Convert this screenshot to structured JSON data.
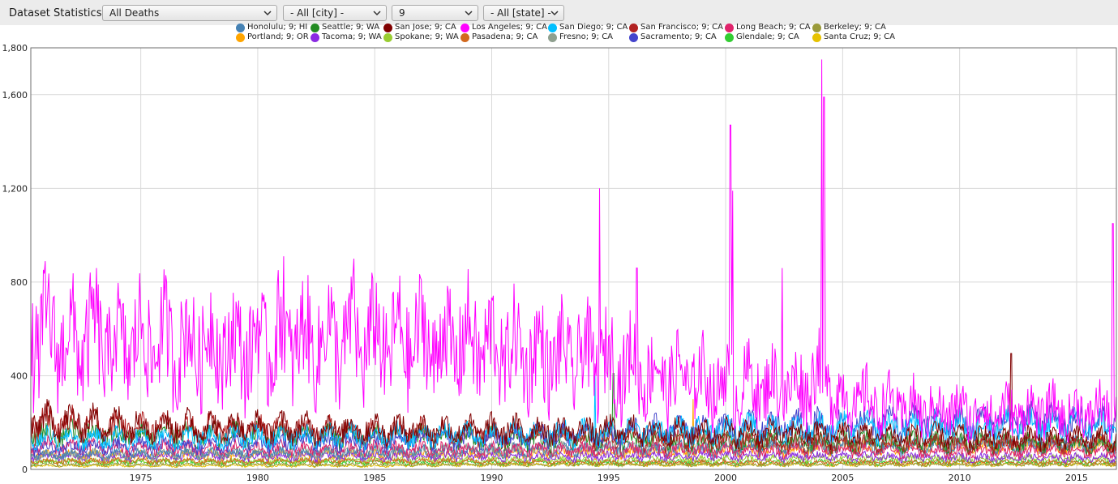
{
  "toolbar": {
    "title": "Dataset Statistics",
    "dataset_select": "All Deaths",
    "city_select": "- All [city] -",
    "week_select": "9",
    "state_select": "- All [state] -"
  },
  "legend": [
    {
      "label": "Honolulu; 9; HI",
      "color": "#4682b4"
    },
    {
      "label": "Seattle; 9; WA",
      "color": "#228b22"
    },
    {
      "label": "San Jose; 9; CA",
      "color": "#800000"
    },
    {
      "label": "Los Angeles; 9; CA",
      "color": "#ff00ff"
    },
    {
      "label": "San Diego; 9; CA",
      "color": "#00bfff"
    },
    {
      "label": "San Francisco; 9; CA",
      "color": "#b22222"
    },
    {
      "label": "Long Beach; 9; CA",
      "color": "#e0246c"
    },
    {
      "label": "Berkeley; 9; CA",
      "color": "#9a9a3a"
    },
    {
      "label": "Portland; 9; OR",
      "color": "#ffa500"
    },
    {
      "label": "Tacoma; 9; WA",
      "color": "#8a2be2"
    },
    {
      "label": "Spokane; 9; WA",
      "color": "#9acd32"
    },
    {
      "label": "Pasadena; 9; CA",
      "color": "#d2691e"
    },
    {
      "label": "Fresno; 9; CA",
      "color": "#8fa08f"
    },
    {
      "label": "Sacramento; 9; CA",
      "color": "#4444cc"
    },
    {
      "label": "Glendale; 9; CA",
      "color": "#32cd32"
    },
    {
      "label": "Santa Cruz; 9; CA",
      "color": "#e6c200"
    }
  ],
  "chart_data": {
    "type": "line",
    "title": "",
    "xlabel": "",
    "ylabel": "",
    "xlim": [
      1970.3,
      2016.7
    ],
    "ylim": [
      0,
      1800
    ],
    "yticks": [
      0,
      400,
      800,
      1200,
      1600,
      1800
    ],
    "ytick_labels": [
      "0",
      "400",
      "800",
      "1,200",
      "1,600",
      "1,800"
    ],
    "xticks": [
      1975,
      1980,
      1985,
      1990,
      1995,
      2000,
      2005,
      2010,
      2015
    ],
    "xtick_labels": [
      "1975",
      "1980",
      "1985",
      "1990",
      "1995",
      "2000",
      "2005",
      "2010",
      "2015"
    ],
    "grid": true,
    "legend_position": "top",
    "series": [
      {
        "name": "Los Angeles; 9; CA",
        "color": "#ff00ff",
        "points": [
          [
            1970.3,
            560
          ],
          [
            1971,
            580
          ],
          [
            1972,
            540
          ],
          [
            1973,
            560
          ],
          [
            1974,
            520
          ],
          [
            1975,
            550
          ],
          [
            1976,
            540
          ],
          [
            1977,
            530
          ],
          [
            1978,
            540
          ],
          [
            1979,
            520
          ],
          [
            1980,
            530
          ],
          [
            1981,
            560
          ],
          [
            1982,
            540
          ],
          [
            1983,
            560
          ],
          [
            1984,
            530
          ],
          [
            1985,
            550
          ],
          [
            1986,
            540
          ],
          [
            1987,
            550
          ],
          [
            1988,
            530
          ],
          [
            1989,
            540
          ],
          [
            1990,
            520
          ],
          [
            1991,
            500
          ],
          [
            1992,
            490
          ],
          [
            1993,
            470
          ],
          [
            1994,
            480
          ],
          [
            1995,
            450
          ],
          [
            1996,
            440
          ],
          [
            1997,
            400
          ],
          [
            1998,
            390
          ],
          [
            1999,
            380
          ],
          [
            2000,
            360
          ],
          [
            2001,
            360
          ],
          [
            2002,
            350
          ],
          [
            2003,
            340
          ],
          [
            2004,
            420
          ],
          [
            2005,
            300
          ],
          [
            2006,
            290
          ],
          [
            2007,
            270
          ],
          [
            2008,
            260
          ],
          [
            2009,
            250
          ],
          [
            2010,
            250
          ],
          [
            2011,
            245
          ],
          [
            2012,
            245
          ],
          [
            2013,
            245
          ],
          [
            2014,
            245
          ],
          [
            2015,
            240
          ],
          [
            2016,
            250
          ],
          [
            2016.7,
            245
          ]
        ],
        "spikes": [
          [
            1973.1,
            860
          ],
          [
            1981.1,
            910
          ],
          [
            1984.1,
            900
          ],
          [
            1994.6,
            1200
          ],
          [
            1996.2,
            860
          ],
          [
            2000.2,
            1470
          ],
          [
            2000.3,
            1190
          ],
          [
            2002.4,
            860
          ],
          [
            2004.1,
            1750
          ],
          [
            2004.2,
            1590
          ],
          [
            2016.55,
            1050
          ]
        ]
      },
      {
        "name": "San Jose; 9; CA",
        "color": "#800000",
        "points": [
          [
            1970.3,
            210
          ],
          [
            1975,
            190
          ],
          [
            1980,
            180
          ],
          [
            1985,
            175
          ],
          [
            1990,
            170
          ],
          [
            1995,
            165
          ],
          [
            2000,
            160
          ],
          [
            2005,
            150
          ],
          [
            2010,
            140
          ],
          [
            2016.7,
            130
          ]
        ],
        "spikes": [
          [
            2012.2,
            495
          ]
        ]
      },
      {
        "name": "San Diego; 9; CA",
        "color": "#00bfff",
        "points": [
          [
            1970.3,
            130
          ],
          [
            1975,
            135
          ],
          [
            1980,
            140
          ],
          [
            1985,
            145
          ],
          [
            1990,
            150
          ],
          [
            1995,
            160
          ],
          [
            2000,
            170
          ],
          [
            2005,
            175
          ],
          [
            2010,
            180
          ],
          [
            2016.7,
            190
          ]
        ],
        "spikes": [
          [
            1994.4,
            400
          ]
        ]
      },
      {
        "name": "Sacramento; 9; CA",
        "color": "#4444cc",
        "points": [
          [
            1970.3,
            90
          ],
          [
            1975,
            100
          ],
          [
            1980,
            110
          ],
          [
            1985,
            120
          ],
          [
            1990,
            135
          ],
          [
            1995,
            155
          ],
          [
            2000,
            180
          ],
          [
            2005,
            195
          ],
          [
            2010,
            200
          ],
          [
            2016.7,
            210
          ]
        ],
        "spikes": []
      },
      {
        "name": "San Francisco; 9; CA",
        "color": "#b22222",
        "points": [
          [
            1970.3,
            200
          ],
          [
            1975,
            180
          ],
          [
            1980,
            170
          ],
          [
            1985,
            160
          ],
          [
            1990,
            150
          ],
          [
            1995,
            130
          ],
          [
            2000,
            120
          ],
          [
            2005,
            110
          ],
          [
            2010,
            110
          ],
          [
            2016.7,
            110
          ]
        ],
        "spikes": []
      },
      {
        "name": "Seattle; 9; WA",
        "color": "#228b22",
        "points": [
          [
            1970.3,
            160
          ],
          [
            1975,
            150
          ],
          [
            1980,
            145
          ],
          [
            1985,
            140
          ],
          [
            1990,
            135
          ],
          [
            1995,
            125
          ],
          [
            2000,
            120
          ],
          [
            2005,
            120
          ],
          [
            2010,
            115
          ],
          [
            2016.7,
            110
          ]
        ],
        "spikes": [
          [
            1995.2,
            410
          ]
        ]
      },
      {
        "name": "Long Beach; 9; CA",
        "color": "#e0246c",
        "points": [
          [
            1970.3,
            100
          ],
          [
            1975,
            95
          ],
          [
            1980,
            90
          ],
          [
            1985,
            90
          ],
          [
            1990,
            85
          ],
          [
            1995,
            85
          ],
          [
            2000,
            80
          ],
          [
            2005,
            80
          ],
          [
            2010,
            75
          ],
          [
            2016.7,
            75
          ]
        ],
        "spikes": []
      },
      {
        "name": "Honolulu; 9; HI",
        "color": "#4682b4",
        "points": [
          [
            1970.3,
            60
          ],
          [
            1975,
            65
          ],
          [
            1980,
            70
          ],
          [
            1985,
            75
          ],
          [
            1990,
            80
          ],
          [
            1995,
            85
          ],
          [
            2000,
            90
          ],
          [
            2005,
            95
          ],
          [
            2010,
            100
          ],
          [
            2016.7,
            105
          ]
        ],
        "spikes": []
      },
      {
        "name": "Fresno; 9; CA",
        "color": "#8fa08f",
        "points": [
          [
            1970.3,
            60
          ],
          [
            1975,
            65
          ],
          [
            1980,
            70
          ],
          [
            1985,
            75
          ],
          [
            1990,
            80
          ],
          [
            1995,
            90
          ],
          [
            2000,
            100
          ],
          [
            2005,
            105
          ],
          [
            2010,
            110
          ],
          [
            2016.7,
            115
          ]
        ],
        "spikes": []
      },
      {
        "name": "Tacoma; 9; WA",
        "color": "#8a2be2",
        "points": [
          [
            1970.3,
            55
          ],
          [
            1975,
            55
          ],
          [
            1980,
            55
          ],
          [
            1985,
            55
          ],
          [
            1990,
            55
          ],
          [
            1995,
            55
          ],
          [
            2000,
            55
          ],
          [
            2005,
            55
          ],
          [
            2010,
            50
          ],
          [
            2016.7,
            50
          ]
        ],
        "spikes": []
      },
      {
        "name": "Pasadena; 9; CA",
        "color": "#d2691e",
        "points": [
          [
            1970.3,
            35
          ],
          [
            1975,
            35
          ],
          [
            1980,
            35
          ],
          [
            1985,
            35
          ],
          [
            1990,
            35
          ],
          [
            1995,
            30
          ],
          [
            2000,
            30
          ],
          [
            2005,
            30
          ],
          [
            2010,
            30
          ],
          [
            2016.7,
            30
          ]
        ],
        "spikes": []
      },
      {
        "name": "Portland; 9; OR",
        "color": "#ffa500",
        "points": [
          [
            1970.3,
            60
          ],
          [
            1975,
            60
          ],
          [
            1980,
            60
          ],
          [
            1985,
            60
          ],
          [
            1990,
            65
          ],
          [
            1995,
            70
          ],
          [
            2000,
            80
          ],
          [
            2005,
            90
          ],
          [
            2010,
            95
          ],
          [
            2016.7,
            100
          ]
        ],
        "spikes": [
          [
            1998.6,
            300
          ]
        ]
      },
      {
        "name": "Spokane; 9; WA",
        "color": "#9acd32",
        "points": [
          [
            1970.3,
            35
          ],
          [
            1975,
            35
          ],
          [
            1980,
            35
          ],
          [
            1985,
            40
          ],
          [
            1990,
            40
          ],
          [
            1995,
            40
          ],
          [
            2000,
            45
          ],
          [
            2005,
            45
          ],
          [
            2010,
            45
          ],
          [
            2016.7,
            45
          ]
        ],
        "spikes": []
      },
      {
        "name": "Glendale; 9; CA",
        "color": "#32cd32",
        "points": [
          [
            1970.3,
            30
          ],
          [
            1975,
            30
          ],
          [
            1980,
            30
          ],
          [
            1985,
            30
          ],
          [
            1990,
            30
          ],
          [
            1995,
            30
          ],
          [
            2000,
            30
          ],
          [
            2005,
            30
          ],
          [
            2010,
            30
          ],
          [
            2016.7,
            30
          ]
        ],
        "spikes": []
      },
      {
        "name": "Berkeley; 9; CA",
        "color": "#9a9a3a",
        "points": [
          [
            1970.3,
            20
          ],
          [
            1975,
            20
          ],
          [
            1980,
            20
          ],
          [
            1985,
            20
          ],
          [
            1990,
            20
          ],
          [
            1995,
            20
          ],
          [
            2000,
            20
          ],
          [
            2005,
            20
          ],
          [
            2010,
            20
          ],
          [
            2016.7,
            20
          ]
        ],
        "spikes": []
      },
      {
        "name": "Santa Cruz; 9; CA",
        "color": "#e6c200",
        "points": [
          [
            1970.3,
            15
          ],
          [
            1975,
            15
          ],
          [
            1980,
            15
          ],
          [
            1985,
            15
          ],
          [
            1990,
            20
          ],
          [
            1995,
            20
          ],
          [
            2000,
            20
          ],
          [
            2005,
            20
          ],
          [
            2010,
            20
          ],
          [
            2016.7,
            20
          ]
        ],
        "spikes": []
      }
    ]
  }
}
